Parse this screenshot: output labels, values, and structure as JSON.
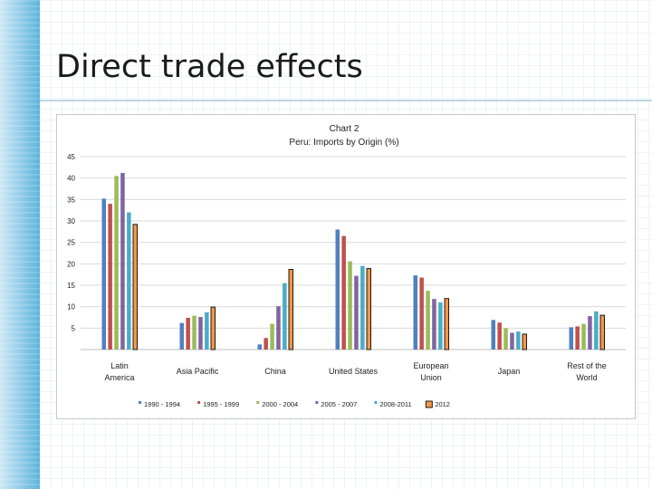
{
  "slide": {
    "title": "Direct trade effects"
  },
  "chart_data": {
    "type": "bar",
    "title": "Chart 2",
    "subtitle": "Peru: Imports by Origin (%)",
    "categories": [
      [
        "Latin",
        "America"
      ],
      [
        "Asia Pacific"
      ],
      [
        "China"
      ],
      [
        "United States"
      ],
      [
        "European",
        "Union"
      ],
      [
        "Japan"
      ],
      [
        "Rest of the",
        "World"
      ]
    ],
    "ylim": [
      0,
      45
    ],
    "yticks": [
      5,
      10,
      15,
      20,
      25,
      30,
      35,
      40,
      45
    ],
    "grid": true,
    "legend_position": "bottom",
    "series": [
      {
        "name": "1990 - 1994",
        "color": "#4f81bd",
        "values": [
          35.2,
          6.2,
          1.2,
          28.0,
          17.3,
          6.9,
          5.2
        ]
      },
      {
        "name": "1995 - 1999",
        "color": "#c0504d",
        "values": [
          34.0,
          7.4,
          2.7,
          26.5,
          16.8,
          6.3,
          5.4
        ]
      },
      {
        "name": "2000 - 2004",
        "color": "#9bbb59",
        "values": [
          40.5,
          7.9,
          6.0,
          20.6,
          13.7,
          5.0,
          6.0
        ]
      },
      {
        "name": "2005 - 2007",
        "color": "#8064a2",
        "values": [
          41.2,
          7.6,
          10.1,
          17.2,
          11.8,
          3.9,
          7.8
        ]
      },
      {
        "name": "2008-2011",
        "color": "#4bacc6",
        "values": [
          32.0,
          8.7,
          15.5,
          19.5,
          11.0,
          4.2,
          8.9
        ]
      },
      {
        "name": "2012",
        "color": "#f79646",
        "values": [
          29.2,
          9.9,
          18.7,
          18.9,
          11.9,
          3.6,
          8.0
        ]
      }
    ]
  }
}
